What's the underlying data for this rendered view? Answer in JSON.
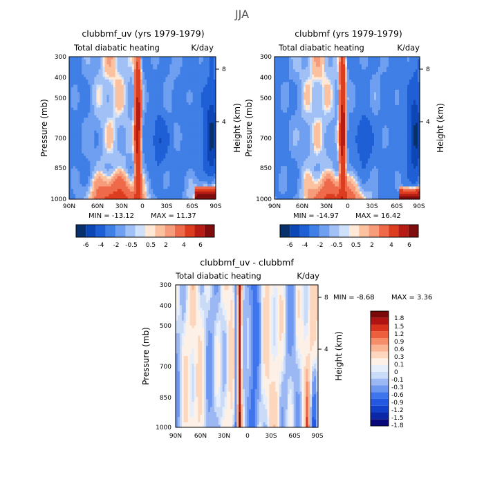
{
  "figure_title": "JJA",
  "palettes": {
    "full": [
      "#08306b",
      "#0d47b5",
      "#1f5fd6",
      "#3f7fe6",
      "#6f9ff0",
      "#a1c0f5",
      "#cfe0fb",
      "#ffe8d6",
      "#fcc2a0",
      "#f79c7b",
      "#ef6a4a",
      "#dd3d1f",
      "#b61b14",
      "#7f0d0d"
    ],
    "diff": [
      "#08087b",
      "#0a27a8",
      "#1240c8",
      "#2458e0",
      "#3e74ec",
      "#6e97f0",
      "#9cb8f4",
      "#cadbf8",
      "#e6eefb",
      "#fdf0e6",
      "#fcd6bd",
      "#f9b493",
      "#f48d68",
      "#ec5e3c",
      "#d8331d",
      "#b01311",
      "#7a0808"
    ]
  },
  "chart_data": [
    {
      "type": "heatmap",
      "title": "clubbmf_uv (yrs 1979-1979)",
      "left_subtitle": "Total diabatic heating",
      "right_subtitle": "K/day",
      "ylabel": "Pressure (mb)",
      "ylabel_right": "Height (km)",
      "xticks": [
        "90N",
        "60N",
        "30N",
        "0",
        "30S",
        "60S",
        "90S"
      ],
      "yticks": [
        "300",
        "400",
        "500",
        "700",
        "850",
        "1000"
      ],
      "yticks_right": [
        "8",
        "4"
      ],
      "min_text": "MIN = -13.12",
      "max_text": "MAX =  11.37",
      "min": -13.12,
      "max": 11.37,
      "scale": "full",
      "seed": 1,
      "colorbar": {
        "labels": [
          "-6",
          "-4",
          "-2",
          "-0.5",
          "0.5",
          "2",
          "4",
          "6"
        ]
      }
    },
    {
      "type": "heatmap",
      "title": "clubbmf (yrs 1979-1979)",
      "left_subtitle": "Total diabatic heating",
      "right_subtitle": "K/day",
      "ylabel": "Pressure (mb)",
      "ylabel_right": "Height (km)",
      "xticks": [
        "90N",
        "60N",
        "30N",
        "0",
        "30S",
        "60S",
        "90S"
      ],
      "yticks": [
        "300",
        "400",
        "500",
        "700",
        "850",
        "1000"
      ],
      "yticks_right": [
        "8",
        "4"
      ],
      "min_text": "MIN = -14.97",
      "max_text": "MAX =  16.42",
      "min": -14.97,
      "max": 16.42,
      "scale": "full",
      "seed": 2,
      "colorbar": {
        "labels": [
          "-6",
          "-4",
          "-2",
          "-0.5",
          "0.5",
          "2",
          "4",
          "6"
        ]
      }
    },
    {
      "type": "heatmap",
      "title": "clubbmf_uv - clubbmf",
      "left_subtitle": "Total diabatic heating",
      "right_subtitle": "K/day",
      "ylabel": "Pressure (mb)",
      "ylabel_right": "Height (km)",
      "xticks": [
        "90N",
        "60N",
        "30N",
        "0",
        "30S",
        "60S",
        "90S"
      ],
      "yticks": [
        "300",
        "400",
        "500",
        "700",
        "850",
        "1000"
      ],
      "yticks_right": [
        "8",
        "4"
      ],
      "min_text": "MIN =   -8.68",
      "max_text": "MAX =    3.36",
      "min": -8.68,
      "max": 3.36,
      "scale": "diff",
      "seed": 3,
      "colorbar": {
        "labels": [
          "1.8",
          "1.5",
          "1.2",
          "0.9",
          "0.6",
          "0.3",
          "0.1",
          "0",
          "-0.1",
          "-0.3",
          "-0.6",
          "-0.9",
          "-1.2",
          "-1.5",
          "-1.8"
        ]
      }
    }
  ]
}
